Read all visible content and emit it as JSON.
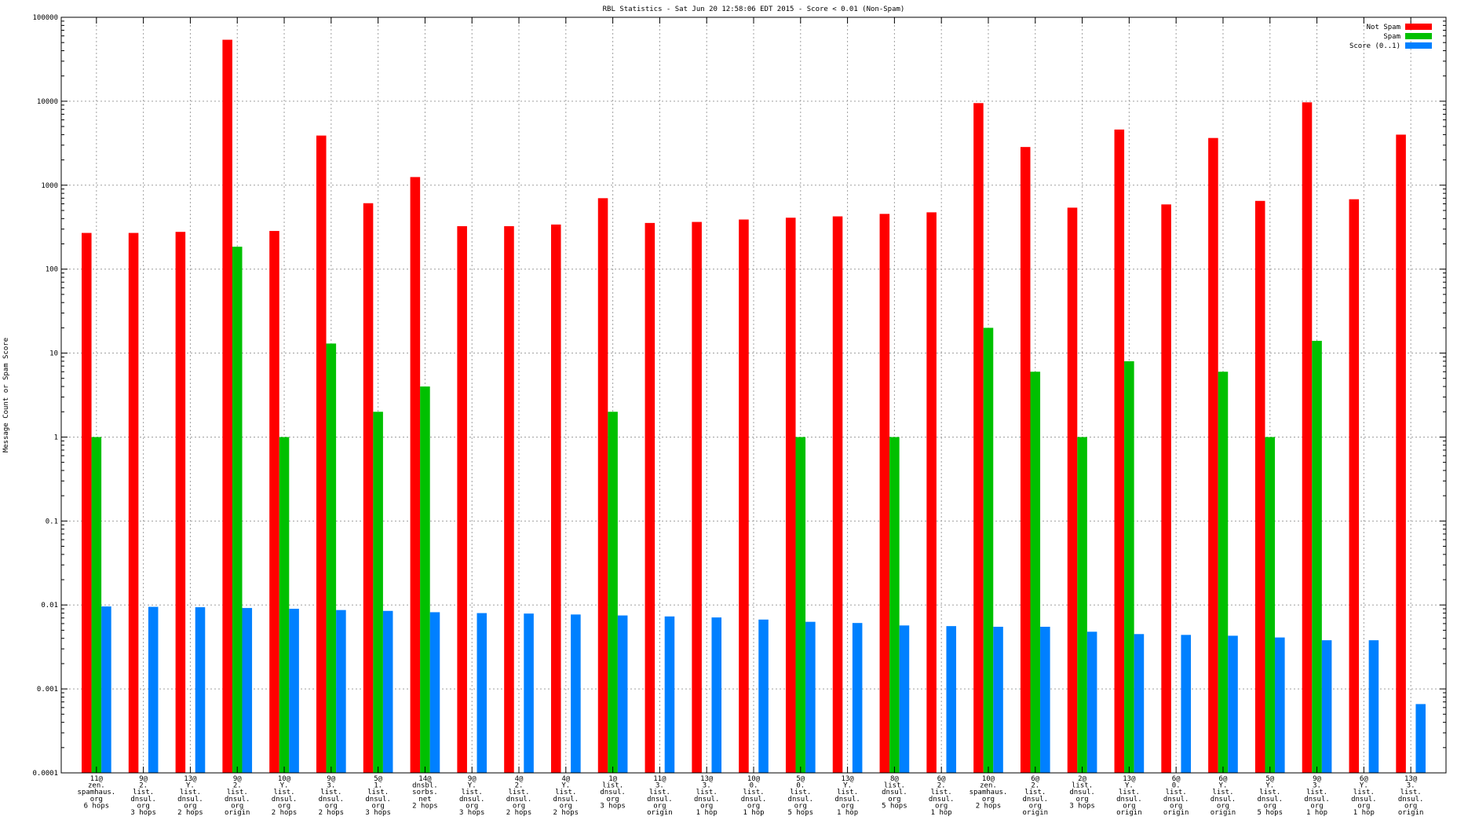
{
  "chart_data": {
    "type": "bar",
    "title": "RBL Statistics - Sat Jun 20 12:58:06 EDT 2015 - Score < 0.01 (Non-Spam)",
    "ylabel": "Message Count or Spam Score",
    "yscale": "log",
    "ylim": [
      0.0001,
      100000
    ],
    "grid": true,
    "legend_position": "top-right",
    "y_tick_labels": [
      "0.0001",
      "0.001",
      "0.01",
      "0.1",
      "1",
      "10",
      "100",
      "1000",
      "10000",
      "100000"
    ],
    "categories": [
      [
        "11@",
        "zen.",
        "spamhaus.",
        "org",
        "6 hops"
      ],
      [
        "9@",
        "2.",
        "list.",
        "dnsul.",
        "org",
        "3 hops"
      ],
      [
        "13@",
        "Y.",
        "list.",
        "dnsul.",
        "org",
        "2 hops"
      ],
      [
        "9@",
        "2.",
        "list.",
        "dnsul.",
        "org",
        "origin"
      ],
      [
        "10@",
        "Y.",
        "list.",
        "dnsul.",
        "org",
        "2 hops"
      ],
      [
        "9@",
        "3.",
        "list.",
        "dnsul.",
        "org",
        "2 hops"
      ],
      [
        "5@",
        "1.",
        "list.",
        "dnsul.",
        "org",
        "3 hops"
      ],
      [
        "14@",
        "dnsbl.",
        "sorbs.",
        "net",
        "2 hops"
      ],
      [
        "9@",
        "Y.",
        "list.",
        "dnsul.",
        "org",
        "3 hops"
      ],
      [
        "4@",
        "2.",
        "list.",
        "dnsul.",
        "org",
        "2 hops"
      ],
      [
        "4@",
        "Y.",
        "list.",
        "dnsul.",
        "org",
        "2 hops"
      ],
      [
        "1@",
        "list.",
        "dnsul.",
        "org",
        "3 hops"
      ],
      [
        "11@",
        "3.",
        "list.",
        "dnsul.",
        "org",
        "origin"
      ],
      [
        "13@",
        "3.",
        "list.",
        "dnsul.",
        "org",
        "1 hop"
      ],
      [
        "10@",
        "0.",
        "list.",
        "dnsul.",
        "org",
        "1 hop"
      ],
      [
        "5@",
        "0.",
        "list.",
        "dnsul.",
        "org",
        "5 hops"
      ],
      [
        "13@",
        "Y.",
        "list.",
        "dnsul.",
        "org",
        "1 hop"
      ],
      [
        "8@",
        "list.",
        "dnsul.",
        "org",
        "5 hops"
      ],
      [
        "6@",
        "2.",
        "list.",
        "dnsul.",
        "org",
        "1 hop"
      ],
      [
        "10@",
        "zen.",
        "spamhaus.",
        "org",
        "2 hops"
      ],
      [
        "6@",
        "2.",
        "list.",
        "dnsul.",
        "org",
        "origin"
      ],
      [
        "2@",
        "list.",
        "dnsul.",
        "org",
        "3 hops"
      ],
      [
        "13@",
        "Y.",
        "list.",
        "dnsul.",
        "org",
        "origin"
      ],
      [
        "6@",
        "0.",
        "list.",
        "dnsul.",
        "org",
        "origin"
      ],
      [
        "6@",
        "Y.",
        "list.",
        "dnsul.",
        "org",
        "origin"
      ],
      [
        "5@",
        "Y.",
        "list.",
        "dnsul.",
        "org",
        "5 hops"
      ],
      [
        "9@",
        "3.",
        "list.",
        "dnsul.",
        "org",
        "1 hop"
      ],
      [
        "6@",
        "Y.",
        "list.",
        "dnsul.",
        "org",
        "1 hop"
      ],
      [
        "13@",
        "3.",
        "list.",
        "dnsul.",
        "org",
        "origin"
      ]
    ],
    "series": [
      {
        "name": "Not Spam",
        "color": "#ff0000",
        "values": [
          270,
          270,
          278,
          54000,
          285,
          3900,
          610,
          1250,
          325,
          325,
          340,
          700,
          355,
          365,
          390,
          410,
          425,
          455,
          475,
          9500,
          2850,
          540,
          4600,
          590,
          3650,
          650,
          9700,
          680,
          4000
        ]
      },
      {
        "name": "Spam",
        "color": "#00c000",
        "values": [
          1,
          null,
          null,
          185,
          1,
          13,
          2,
          4,
          null,
          null,
          null,
          2,
          null,
          null,
          null,
          1,
          null,
          1,
          null,
          20,
          6,
          1,
          8,
          null,
          6,
          1,
          14,
          null,
          null
        ]
      },
      {
        "name": "Score (0..1)",
        "color": "#0080ff",
        "values": [
          0.0096,
          0.0095,
          0.0094,
          0.0092,
          0.009,
          0.0087,
          0.0085,
          0.0082,
          0.008,
          0.0079,
          0.0077,
          0.0075,
          0.0073,
          0.0071,
          0.0067,
          0.0063,
          0.0061,
          0.0057,
          0.0056,
          0.0055,
          0.0055,
          0.0048,
          0.0045,
          0.0044,
          0.0043,
          0.0041,
          0.0038,
          0.0038,
          0.00066
        ]
      }
    ]
  }
}
